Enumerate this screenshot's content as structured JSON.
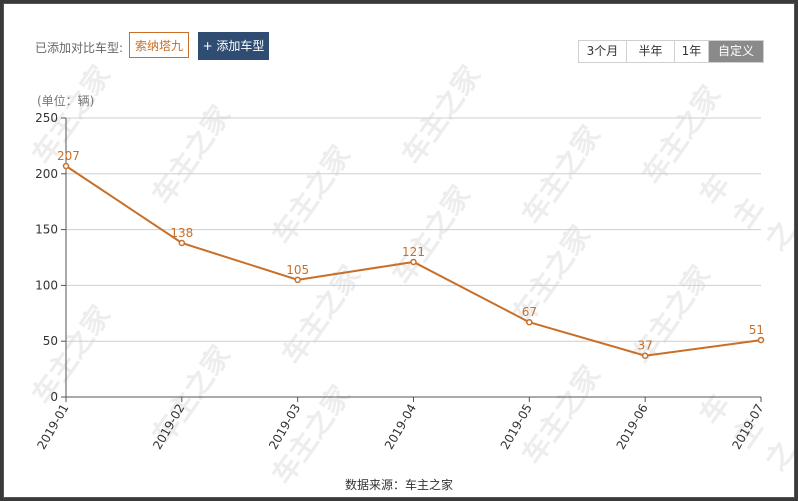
{
  "toolbar": {
    "compare_label": "已添加对比车型:",
    "model_tag": "索纳塔九",
    "add_button": "+ 添加车型"
  },
  "range_buttons": [
    "3个月",
    "半年",
    "1年",
    "自定义"
  ],
  "active_range": "自定义",
  "unit_label": "(单位：辆)",
  "source_label": "数据来源：车主之家",
  "watermark": "车主之家",
  "colors": {
    "series": "#c8702a",
    "button": "#2f4d72",
    "active_range": "#8a8a8a"
  },
  "chart_data": {
    "type": "line",
    "categories": [
      "2019-01",
      "2019-02",
      "2019-03",
      "2019-04",
      "2019-05",
      "2019-06",
      "2019-07"
    ],
    "values": [
      207,
      138,
      105,
      121,
      67,
      37,
      51
    ],
    "ylim": [
      0,
      250
    ],
    "yticks": [
      0,
      50,
      100,
      150,
      200,
      250
    ],
    "grid": true,
    "legend": "none"
  }
}
